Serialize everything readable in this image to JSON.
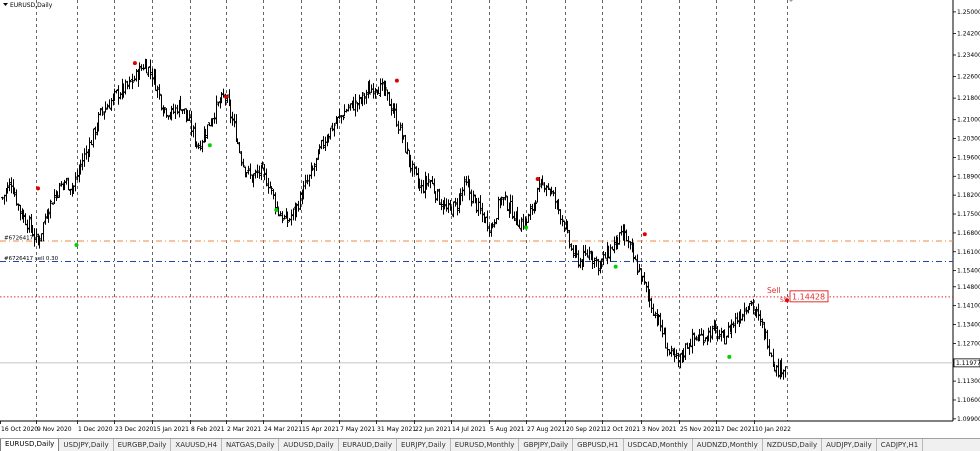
{
  "window": {
    "title": "EURUSD,Daily"
  },
  "chart_data": {
    "type": "ohlc",
    "title": "EURUSD,Daily",
    "ylim": [
      1.0994,
      1.255
    ],
    "y_ticks": [
      "1.25000",
      "1.24200",
      "1.23400",
      "1.22600",
      "1.21800",
      "1.21000",
      "1.20300",
      "1.19600",
      "1.18900",
      "1.18200",
      "1.17500",
      "1.16800",
      "1.16100",
      "1.15400",
      "1.14800",
      "1.14100",
      "1.13400",
      "1.12700",
      "1.12000",
      "1.11300",
      "1.10600",
      "1.09900"
    ],
    "x_ticks": [
      "16 Oct 2020",
      "9 Nov 2020",
      "1 Dec 2020",
      "23 Dec 2020",
      "15 Jan 2021",
      "8 Feb 2021",
      "2 Mar 2021",
      "24 Mar 2021",
      "15 Apr 2021",
      "7 May 2021",
      "31 May 2021",
      "22 Jun 2021",
      "14 Jul 2021",
      "5 Aug 2021",
      "27 Aug 2021",
      "20 Sep 2021",
      "12 Oct 2021",
      "3 Nov 2021",
      "25 Nov 2021",
      "17 Dec 2021",
      "10 Jan 2022"
    ],
    "close_path": [
      1.181,
      1.187,
      1.176,
      1.171,
      1.164,
      1.176,
      1.183,
      1.187,
      1.185,
      1.195,
      1.202,
      1.212,
      1.216,
      1.22,
      1.222,
      1.226,
      1.231,
      1.226,
      1.215,
      1.212,
      1.216,
      1.209,
      1.2,
      1.207,
      1.214,
      1.219,
      1.208,
      1.194,
      1.188,
      1.191,
      1.186,
      1.176,
      1.172,
      1.177,
      1.185,
      1.192,
      1.201,
      1.207,
      1.211,
      1.215,
      1.216,
      1.22,
      1.223,
      1.22,
      1.213,
      1.203,
      1.192,
      1.184,
      1.188,
      1.181,
      1.176,
      1.178,
      1.186,
      1.18,
      1.174,
      1.17,
      1.181,
      1.178,
      1.172,
      1.172,
      1.182,
      1.187,
      1.181,
      1.173,
      1.161,
      1.157,
      1.161,
      1.156,
      1.16,
      1.165,
      1.167,
      1.158,
      1.15,
      1.141,
      1.133,
      1.123,
      1.12,
      1.127,
      1.129,
      1.13,
      1.132,
      1.128,
      1.134,
      1.138,
      1.143,
      1.136,
      1.128,
      1.117,
      1.119
    ],
    "current_price": "1.11977",
    "signal_dots": [
      {
        "x": "16 Oct 2020",
        "y": 1.1845,
        "color": "#e00000",
        "at": "start"
      },
      {
        "x": "9 Nov 2020",
        "y": 1.1635,
        "color": "#00d000",
        "at": "start"
      },
      {
        "x": "23 Dec 2020",
        "y": 1.231,
        "color": "#e00000",
        "at": "0.55"
      },
      {
        "x": "2 Mar 2021",
        "y": 1.2185,
        "color": "#e00000",
        "at": "0"
      },
      {
        "x": "8 Feb 2021",
        "y": 1.2005,
        "color": "#00d000",
        "at": "0.55"
      },
      {
        "x": "24 Mar 2021",
        "y": 1.1765,
        "color": "#00d000",
        "at": "0.35"
      },
      {
        "x": "31 May 2021",
        "y": 1.2245,
        "color": "#e00000",
        "at": "0.55"
      },
      {
        "x": "27 Aug 2021",
        "y": 1.188,
        "color": "#e00000",
        "at": "0.3"
      },
      {
        "x": "27 Aug 2021",
        "y": 1.17,
        "color": "#00d000",
        "at": "0"
      },
      {
        "x": "3 Nov 2021",
        "y": 1.1675,
        "color": "#e00000",
        "at": "0.1"
      },
      {
        "x": "12 Oct 2021",
        "y": 1.1555,
        "color": "#00d000",
        "at": "0.35"
      },
      {
        "x": "17 Dec 2021",
        "y": 1.122,
        "color": "#00d000",
        "at": "0.35"
      },
      {
        "x": "10 Jan 2022",
        "y": 1.143,
        "color": "#e00000",
        "at": "1.0"
      }
    ],
    "hlines": [
      {
        "name": "order-line",
        "y": 1.165,
        "color": "#ee8844",
        "style": "dashdot",
        "label": "#6726417 "
      },
      {
        "name": "stoploss-line",
        "y": 1.1574,
        "color": "#2244aa",
        "style": "dashdot",
        "label": "#6726417 sell 0.30"
      },
      {
        "name": "sell-line",
        "y": 1.14428,
        "color": "#e03030",
        "style": "dotted",
        "label": ""
      },
      {
        "name": "price-line",
        "y": 1.11977,
        "color": "#b0b0b0",
        "style": "solid",
        "label": ""
      }
    ],
    "sell_annotation": {
      "text": "Sell",
      "price": "1.14428",
      "marker": "SS"
    },
    "grid": "vertical-dashed"
  },
  "tabs": [
    "EURUSD,Daily",
    "USDJPY,Daily",
    "EURGBP,Daily",
    "XAUUSD,H4",
    "NATGAS,Daily",
    "AUDUSD,Daily",
    "EURAUD,Daily",
    "EURJPY,Daily",
    "EURUSD,Monthly",
    "GBPJPY,Daily",
    "GBPUSD,H1",
    "USDCAD,Monthly",
    "AUDNZD,Monthly",
    "NZDUSD,Daily",
    "AUDJPY,Daily",
    "CADJPY,H1"
  ],
  "active_tab": 0
}
